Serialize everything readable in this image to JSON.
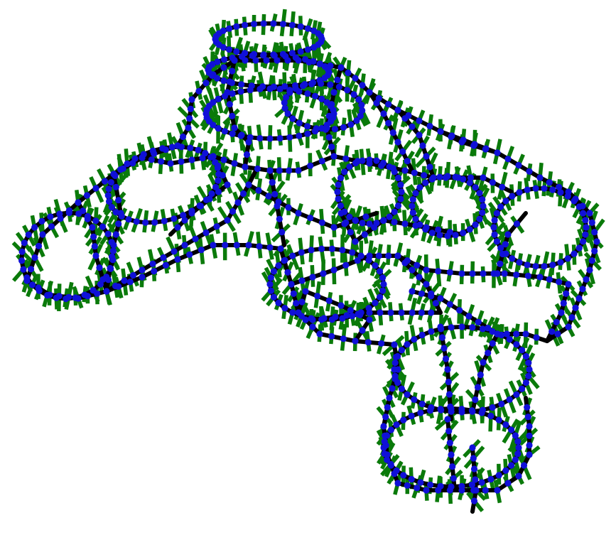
{
  "figure": {
    "description_visible_text": "",
    "colors": {
      "background": "#ffffff",
      "edges": "#000000",
      "vertices": "#1010d8",
      "normals": "#0a7a0a"
    },
    "elements": [
      "mesh-edge",
      "mesh-vertex",
      "normal-vector"
    ]
  }
}
